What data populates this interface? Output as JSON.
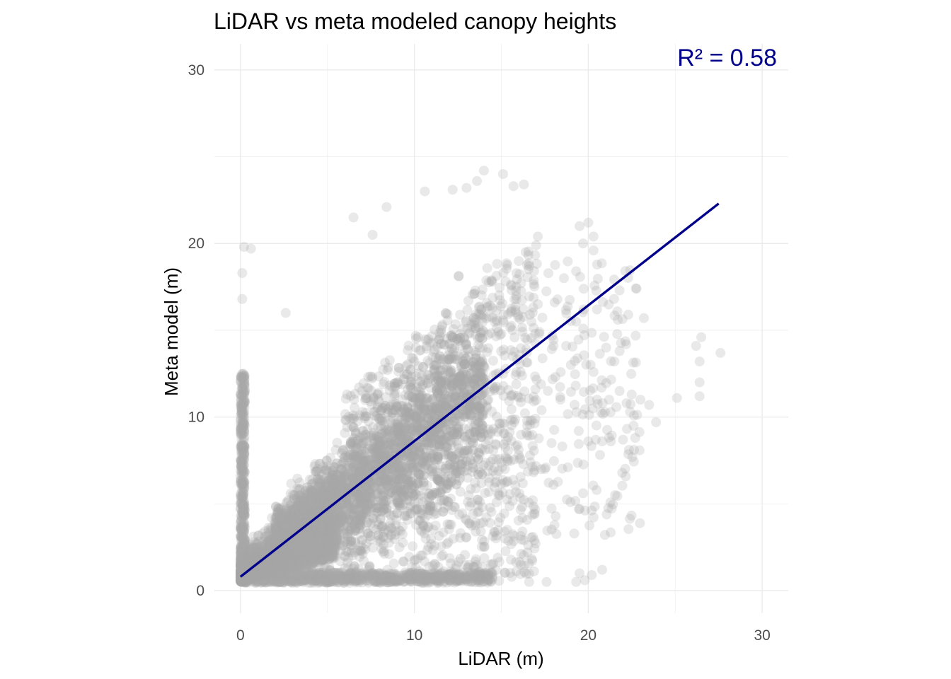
{
  "chart_data": {
    "type": "scatter",
    "title": "LiDAR vs meta modeled canopy heights",
    "xlabel": "LiDAR (m)",
    "ylabel": "Meta model (m)",
    "xlim": [
      -1.5,
      31.5
    ],
    "ylim": [
      -1.3,
      31.5
    ],
    "x_ticks": [
      0,
      10,
      20,
      30
    ],
    "y_ticks": [
      0,
      10,
      20,
      30
    ],
    "x_tick_labels": [
      "0",
      "10",
      "20",
      "30"
    ],
    "y_tick_labels": [
      "0",
      "10",
      "20",
      "30"
    ],
    "grid": true,
    "point_color": "#a9a9a9",
    "point_opacity": 0.25,
    "fit_line": {
      "x": [
        0,
        27.5
      ],
      "y": [
        0.8,
        22.3
      ],
      "color": "#00008b"
    },
    "annotation": {
      "text": "R² = 0.58",
      "color": "#00008b",
      "position": "top-right"
    },
    "clusters": [
      {
        "x_range": [
          0,
          4
        ],
        "y_range": [
          0.5,
          10
        ],
        "density": "very high"
      },
      {
        "x_range": [
          3,
          11
        ],
        "y_range": [
          0.5,
          15
        ],
        "density": "high"
      },
      {
        "x_range": [
          10,
          18
        ],
        "y_range": [
          0.5,
          24
        ],
        "density": "medium"
      },
      {
        "x_range": [
          18,
          27
        ],
        "y_range": [
          0.5,
          21
        ],
        "density": "sparse"
      }
    ],
    "outliers": [
      {
        "x": 0.1,
        "y": 18.3
      },
      {
        "x": 0.1,
        "y": 16.8
      },
      {
        "x": 0.6,
        "y": 19.7
      },
      {
        "x": 0.2,
        "y": 19.8
      },
      {
        "x": 2.6,
        "y": 16.0
      },
      {
        "x": 8.4,
        "y": 22.1
      },
      {
        "x": 14.0,
        "y": 24.2
      },
      {
        "x": 15.1,
        "y": 24.0
      },
      {
        "x": 13.6,
        "y": 23.6
      },
      {
        "x": 15.7,
        "y": 23.3
      },
      {
        "x": 16.3,
        "y": 23.4
      },
      {
        "x": 10.6,
        "y": 23.0
      },
      {
        "x": 12.2,
        "y": 23.1
      },
      {
        "x": 13.0,
        "y": 23.2
      },
      {
        "x": 6.5,
        "y": 21.5
      },
      {
        "x": 7.6,
        "y": 20.5
      },
      {
        "x": 20.0,
        "y": 21.2
      },
      {
        "x": 19.5,
        "y": 21.0
      },
      {
        "x": 20.3,
        "y": 20.4
      },
      {
        "x": 19.7,
        "y": 20.0
      },
      {
        "x": 20.3,
        "y": 19.6
      },
      {
        "x": 21.8,
        "y": 17.3
      },
      {
        "x": 22.3,
        "y": 15.9
      },
      {
        "x": 23.2,
        "y": 15.7
      },
      {
        "x": 21.7,
        "y": 15.6
      },
      {
        "x": 20.5,
        "y": 16.2
      },
      {
        "x": 21.5,
        "y": 13.2
      },
      {
        "x": 21.8,
        "y": 13.8
      },
      {
        "x": 20.3,
        "y": 12.6
      },
      {
        "x": 20.5,
        "y": 11.0
      },
      {
        "x": 21.2,
        "y": 11.0
      },
      {
        "x": 21.8,
        "y": 11.5
      },
      {
        "x": 22.5,
        "y": 11.3
      },
      {
        "x": 22.2,
        "y": 10.8
      },
      {
        "x": 23.0,
        "y": 11.0
      },
      {
        "x": 23.5,
        "y": 10.7
      },
      {
        "x": 22.4,
        "y": 10.3
      },
      {
        "x": 22.6,
        "y": 9.5
      },
      {
        "x": 23.9,
        "y": 9.7
      },
      {
        "x": 21.3,
        "y": 8.6
      },
      {
        "x": 20.8,
        "y": 8.6
      },
      {
        "x": 20.0,
        "y": 8.6
      },
      {
        "x": 22.0,
        "y": 8.7
      },
      {
        "x": 22.7,
        "y": 8.8
      },
      {
        "x": 26.2,
        "y": 14.1
      },
      {
        "x": 26.5,
        "y": 14.6
      },
      {
        "x": 26.4,
        "y": 13.2
      },
      {
        "x": 27.6,
        "y": 13.7
      },
      {
        "x": 26.4,
        "y": 12.0
      },
      {
        "x": 26.4,
        "y": 11.2
      },
      {
        "x": 25.1,
        "y": 11.1
      },
      {
        "x": 19.3,
        "y": 0.5
      },
      {
        "x": 19.8,
        "y": 0.6
      },
      {
        "x": 19.5,
        "y": 1.0
      },
      {
        "x": 20.2,
        "y": 0.9
      },
      {
        "x": 20.8,
        "y": 1.2
      },
      {
        "x": 17.6,
        "y": 0.5
      },
      {
        "x": 16.6,
        "y": 0.5
      },
      {
        "x": 15.6,
        "y": 0.8
      },
      {
        "x": 16.9,
        "y": 2.9
      },
      {
        "x": 16.3,
        "y": 2.9
      },
      {
        "x": 16.5,
        "y": 2.2
      },
      {
        "x": 15.2,
        "y": 3.0
      },
      {
        "x": 18.0,
        "y": 6.1
      },
      {
        "x": 17.3,
        "y": 7.0
      },
      {
        "x": 18.4,
        "y": 11.0
      },
      {
        "x": 19.0,
        "y": 13.0
      },
      {
        "x": 18.0,
        "y": 14.1
      },
      {
        "x": 19.3,
        "y": 15.5
      },
      {
        "x": 17.1,
        "y": 16.5
      },
      {
        "x": 18.6,
        "y": 18.0
      },
      {
        "x": 19.3,
        "y": 18.4
      },
      {
        "x": 17.1,
        "y": 20.4
      },
      {
        "x": 17.0,
        "y": 19.9
      },
      {
        "x": 16.6,
        "y": 18.7
      },
      {
        "x": 16.4,
        "y": 19.5
      }
    ]
  }
}
